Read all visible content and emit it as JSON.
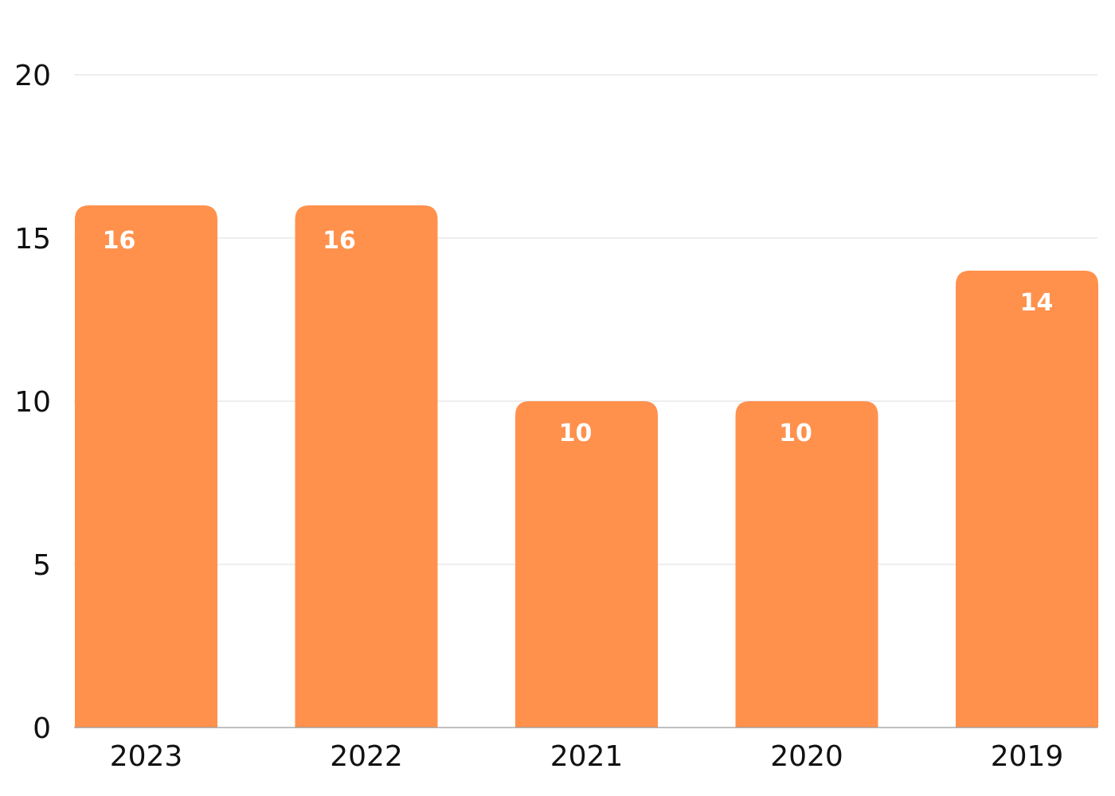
{
  "chart_data": {
    "type": "bar",
    "categories": [
      "2023",
      "2022",
      "2021",
      "2020",
      "2019"
    ],
    "values": [
      16,
      16,
      10,
      10,
      14
    ],
    "data_labels": [
      "16",
      "16",
      "10",
      "10",
      "14"
    ],
    "title": "",
    "xlabel": "",
    "ylabel": "",
    "ylim": [
      0,
      20
    ],
    "y_ticks": [
      0,
      5,
      10,
      15,
      20
    ],
    "y_tick_labels": [
      "0",
      "5",
      "10",
      "15",
      "20"
    ],
    "grid": true,
    "legend": "none",
    "bar_color": "#ff914d",
    "label_color": "#ffffff",
    "grid_color": "#dddddd"
  }
}
